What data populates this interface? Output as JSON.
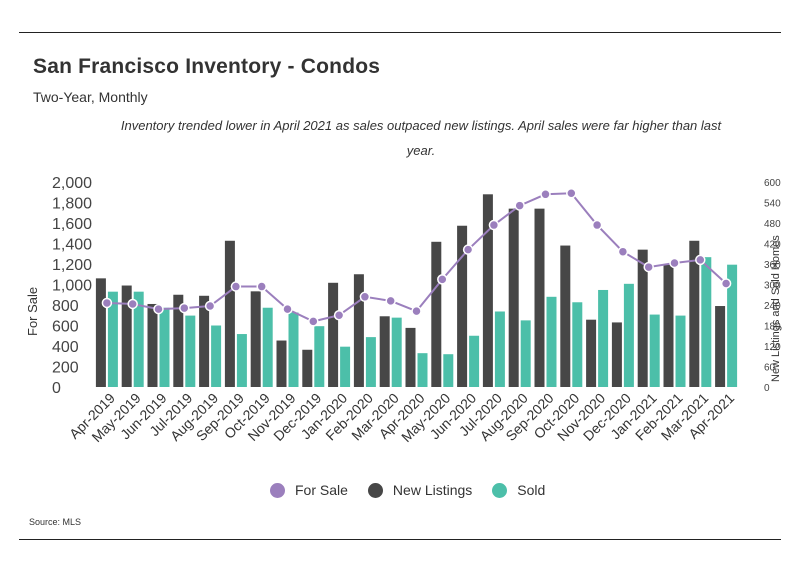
{
  "title": "San Francisco Inventory - Condos",
  "subtitle": "Two-Year, Monthly",
  "note": "Inventory trended lower in April 2021 as sales outpaced new listings. April sales were far higher than last year.",
  "source": "Source:  MLS",
  "colors": {
    "for_sale": "#9b7fbd",
    "new_listings": "#474747",
    "sold": "#4cbfa9"
  },
  "chart_data": {
    "type": "bar",
    "title": "San Francisco Inventory - Condos",
    "categories": [
      "Apr-2019",
      "May-2019",
      "Jun-2019",
      "Jul-2019",
      "Aug-2019",
      "Sep-2019",
      "Oct-2019",
      "Nov-2019",
      "Dec-2019",
      "Jan-2020",
      "Feb-2020",
      "Mar-2020",
      "Apr-2020",
      "May-2020",
      "Jun-2020",
      "Jul-2020",
      "Aug-2020",
      "Sep-2020",
      "Oct-2020",
      "Nov-2020",
      "Dec-2020",
      "Jan-2021",
      "Feb-2021",
      "Mar-2021",
      "Apr-2021"
    ],
    "ylabel": "For Sale",
    "y2label": "New Listings and Sold Homes",
    "ylim": [
      0,
      2000
    ],
    "y2lim": [
      0,
      600
    ],
    "left_ticks": [
      "0",
      "200",
      "400",
      "600",
      "800",
      "1,000",
      "1,200",
      "1,400",
      "1,600",
      "1,800",
      "2,000"
    ],
    "right_ticks": [
      "0",
      "60",
      "120",
      "180",
      "240",
      "300",
      "360",
      "420",
      "480",
      "540",
      "600"
    ],
    "series": [
      {
        "name": "For Sale",
        "kind": "line",
        "axis": "left",
        "values": [
          820,
          810,
          760,
          770,
          790,
          980,
          980,
          760,
          640,
          700,
          880,
          840,
          740,
          1050,
          1340,
          1580,
          1770,
          1880,
          1890,
          1580,
          1320,
          1170,
          1210,
          1240,
          1010
        ]
      },
      {
        "name": "New Listings",
        "kind": "bar",
        "axis": "right",
        "values": [
          318,
          297,
          243,
          270,
          267,
          428,
          280,
          136,
          109,
          305,
          330,
          207,
          173,
          425,
          472,
          564,
          522,
          522,
          414,
          197,
          189,
          402,
          358,
          428,
          237
        ]
      },
      {
        "name": "Sold",
        "kind": "bar",
        "axis": "right",
        "values": [
          279,
          279,
          232,
          209,
          180,
          155,
          232,
          218,
          178,
          118,
          146,
          203,
          99,
          96,
          150,
          221,
          195,
          264,
          248,
          284,
          302,
          212,
          209,
          380,
          358
        ]
      }
    ],
    "legend": [
      "For Sale",
      "New Listings",
      "Sold"
    ],
    "legend_position": "bottom-center"
  }
}
